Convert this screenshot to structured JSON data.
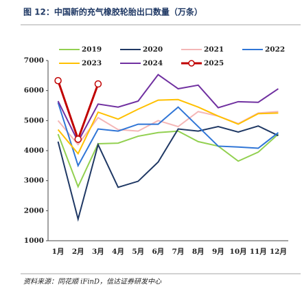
{
  "chart_data": {
    "type": "line",
    "title": "图 12：中国新的充气橡胶轮胎出口数量（万条）",
    "source": "资料来源：同花顺 iFinD，信达证券研发中心",
    "categories": [
      "1月",
      "2月",
      "3月",
      "4月",
      "5月",
      "6月",
      "7月",
      "8月",
      "9月",
      "10月",
      "11月",
      "12月"
    ],
    "series": [
      {
        "name": "2019",
        "color": "#92d050",
        "values": [
          4550,
          2800,
          4230,
          4250,
          4480,
          4600,
          4650,
          4300,
          4150,
          3650,
          3950,
          4550
        ]
      },
      {
        "name": "2020",
        "color": "#1f3864",
        "values": [
          4300,
          1720,
          4200,
          2780,
          2980,
          3620,
          4720,
          4650,
          4800,
          4620,
          4820,
          4500
        ]
      },
      {
        "name": "2021",
        "color": "#f4b6b6",
        "values": [
          5000,
          4200,
          5100,
          4700,
          4650,
          5000,
          4800,
          5300,
          5150,
          4900,
          5250,
          5300
        ]
      },
      {
        "name": "2022",
        "color": "#2f75d6",
        "values": [
          5600,
          3500,
          4720,
          4650,
          4880,
          4880,
          5450,
          4800,
          4150,
          4120,
          4080,
          4600
        ]
      },
      {
        "name": "2023",
        "color": "#ffc000",
        "values": [
          4700,
          3900,
          5280,
          5050,
          5380,
          5680,
          5700,
          5450,
          5150,
          4880,
          5230,
          5250
        ]
      },
      {
        "name": "2024",
        "color": "#7030a0",
        "values": [
          5650,
          4300,
          5550,
          5450,
          5650,
          6530,
          6060,
          6180,
          5430,
          5630,
          5610,
          6060
        ]
      },
      {
        "name": "2025",
        "color": "#c00000",
        "markers": true,
        "values": [
          6330,
          4380,
          6220,
          null,
          null,
          null,
          null,
          null,
          null,
          null,
          null,
          null
        ]
      }
    ],
    "ylim": [
      1000,
      7000
    ],
    "yticks": [
      1000,
      2000,
      3000,
      4000,
      5000,
      6000,
      7000
    ]
  }
}
